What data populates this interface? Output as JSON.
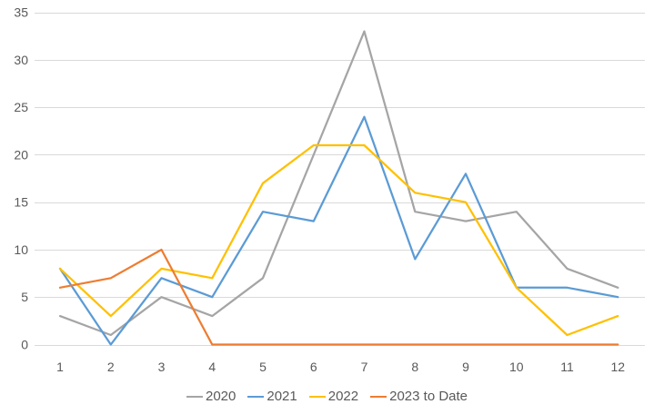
{
  "chart_data": {
    "type": "line",
    "categories": [
      "1",
      "2",
      "3",
      "4",
      "5",
      "6",
      "7",
      "8",
      "9",
      "10",
      "11",
      "12"
    ],
    "series": [
      {
        "name": "2020",
        "color": "#a5a5a5",
        "values": [
          3,
          1,
          5,
          3,
          7,
          20,
          33,
          14,
          13,
          14,
          8,
          6
        ]
      },
      {
        "name": "2021",
        "color": "#5b9bd5",
        "values": [
          8,
          0,
          7,
          5,
          14,
          13,
          24,
          9,
          18,
          6,
          6,
          5
        ]
      },
      {
        "name": "2022",
        "color": "#ffc000",
        "values": [
          8,
          3,
          8,
          7,
          17,
          21,
          21,
          16,
          15,
          6,
          1,
          3
        ]
      },
      {
        "name": "2023 to Date",
        "color": "#ed7d31",
        "values": [
          6,
          7,
          10,
          0,
          0,
          0,
          0,
          0,
          0,
          0,
          0,
          0
        ]
      }
    ],
    "y_ticks": [
      0,
      5,
      10,
      15,
      20,
      25,
      30,
      35
    ],
    "ylim": [
      0,
      35
    ],
    "grid": true,
    "legend_position": "bottom"
  },
  "style_colors": {
    "gridline": "#d9d9d9",
    "tick_label": "#595959",
    "legend_label": "#595959",
    "background": "#ffffff"
  }
}
